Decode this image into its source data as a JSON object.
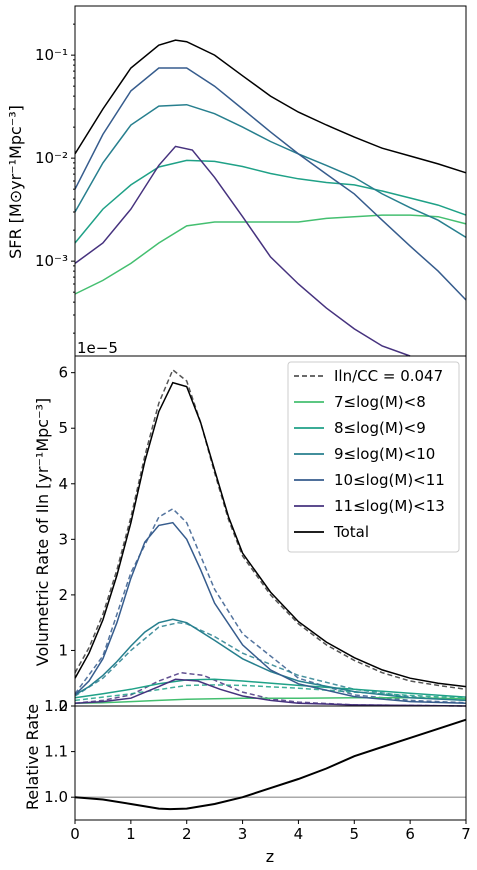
{
  "chart_data": [
    {
      "type": "line",
      "ylabel": "SFR [M⊙yr⁻¹Mpc⁻³]",
      "xlim": [
        0,
        7
      ],
      "ylim": [
        0.00012,
        0.3
      ],
      "yscale": "log",
      "ytick_labels": [
        "10⁻³",
        "10⁻²",
        "10⁻¹"
      ],
      "ytick_values": [
        0.001,
        0.01,
        0.1
      ],
      "series": [
        {
          "name": "7≤log(M)<8",
          "color": "#44bf70",
          "x": [
            0,
            0.5,
            1,
            1.5,
            2,
            2.5,
            3,
            3.5,
            4,
            4.5,
            5,
            5.5,
            6,
            6.5,
            7
          ],
          "y": [
            0.00048,
            0.00065,
            0.00095,
            0.0015,
            0.0022,
            0.0024,
            0.0024,
            0.0024,
            0.0024,
            0.0026,
            0.0027,
            0.0028,
            0.0028,
            0.0027,
            0.0023
          ]
        },
        {
          "name": "8≤log(M)<9",
          "color": "#1fa187",
          "x": [
            0,
            0.5,
            1,
            1.5,
            2,
            2.5,
            3,
            3.5,
            4,
            4.5,
            5,
            5.5,
            6,
            6.5,
            7
          ],
          "y": [
            0.0015,
            0.0032,
            0.0055,
            0.0082,
            0.0095,
            0.0093,
            0.0083,
            0.0071,
            0.0063,
            0.0058,
            0.0055,
            0.0048,
            0.0041,
            0.0035,
            0.0028
          ]
        },
        {
          "name": "9≤log(M)<10",
          "color": "#277f8e",
          "x": [
            0,
            0.5,
            1,
            1.5,
            2,
            2.5,
            3,
            3.5,
            4,
            4.5,
            5,
            5.5,
            6,
            6.5,
            7
          ],
          "y": [
            0.003,
            0.009,
            0.021,
            0.032,
            0.033,
            0.027,
            0.02,
            0.0145,
            0.011,
            0.0085,
            0.0065,
            0.0045,
            0.0033,
            0.0025,
            0.0017
          ]
        },
        {
          "name": "10≤log(M)<11",
          "color": "#365c8d",
          "x": [
            0,
            0.5,
            1,
            1.5,
            2,
            2.5,
            3,
            3.5,
            4,
            4.5,
            5,
            5.5,
            6,
            6.5,
            7
          ],
          "y": [
            0.005,
            0.017,
            0.045,
            0.075,
            0.075,
            0.05,
            0.03,
            0.018,
            0.011,
            0.007,
            0.0045,
            0.0025,
            0.0014,
            0.0008,
            0.00042
          ]
        },
        {
          "name": "11≤log(M)<13",
          "color": "#46327e",
          "x": [
            0,
            0.5,
            1,
            1.5,
            1.8,
            2.1,
            2.5,
            3,
            3.5,
            4,
            4.5,
            5,
            5.5,
            6
          ],
          "y": [
            0.00095,
            0.0015,
            0.0032,
            0.0085,
            0.013,
            0.012,
            0.0065,
            0.0027,
            0.0011,
            0.0006,
            0.00035,
            0.00022,
            0.00015,
            0.00011
          ]
        },
        {
          "name": "Total",
          "color": "#000000",
          "x": [
            0,
            0.5,
            1,
            1.5,
            1.8,
            2,
            2.5,
            3,
            3.5,
            4,
            4.5,
            5,
            5.5,
            6,
            6.5,
            7
          ],
          "y": [
            0.011,
            0.03,
            0.075,
            0.125,
            0.14,
            0.135,
            0.1,
            0.063,
            0.04,
            0.028,
            0.021,
            0.016,
            0.0125,
            0.0105,
            0.0088,
            0.0072
          ]
        }
      ]
    },
    {
      "type": "line",
      "ylabel": "Volumetric Rate of Iln [yr⁻¹Mpc⁻³]",
      "scale_label": "1e−5",
      "xlim": [
        0,
        7
      ],
      "ylim": [
        0,
        6.3
      ],
      "yticks": [
        0,
        1,
        2,
        3,
        4,
        5,
        6
      ],
      "legend_loc": "upper right",
      "series": [
        {
          "name": "Iln/CC = 0.047",
          "color": "#555555",
          "style": "dashed",
          "x": [
            0,
            0.25,
            0.5,
            0.75,
            1,
            1.25,
            1.5,
            1.75,
            2,
            2.25,
            2.5,
            2.75,
            3,
            3.5,
            4,
            4.5,
            5,
            5.5,
            6,
            6.5,
            7
          ],
          "y": [
            0.6,
            1.05,
            1.65,
            2.45,
            3.4,
            4.5,
            5.45,
            6.05,
            5.85,
            5.1,
            4.2,
            3.35,
            2.7,
            2.0,
            1.48,
            1.1,
            0.82,
            0.6,
            0.45,
            0.37,
            0.3
          ]
        },
        {
          "name": "7≤log(M)<8",
          "color": "#44bf70",
          "x": [
            0,
            0.5,
            1,
            1.5,
            2,
            2.5,
            3,
            4,
            5,
            6,
            7
          ],
          "y": [
            0.05,
            0.06,
            0.08,
            0.1,
            0.12,
            0.13,
            0.14,
            0.14,
            0.15,
            0.15,
            0.13
          ]
        },
        {
          "name": "8≤log(M)<9",
          "color": "#1fa187",
          "x": [
            0,
            0.5,
            1,
            1.5,
            2,
            2.5,
            3,
            4,
            5,
            6,
            7
          ],
          "y": [
            0.15,
            0.22,
            0.3,
            0.4,
            0.47,
            0.48,
            0.45,
            0.37,
            0.3,
            0.23,
            0.16
          ]
        },
        {
          "name": "9≤log(M)<10",
          "color": "#277f8e",
          "x": [
            0,
            0.25,
            0.5,
            0.75,
            1,
            1.25,
            1.5,
            1.75,
            2,
            2.5,
            3,
            3.5,
            4,
            5,
            6,
            7
          ],
          "y": [
            0.2,
            0.35,
            0.55,
            0.8,
            1.08,
            1.33,
            1.5,
            1.56,
            1.5,
            1.18,
            0.85,
            0.62,
            0.45,
            0.26,
            0.15,
            0.1
          ]
        },
        {
          "name": "10≤log(M)<11",
          "color": "#365c8d",
          "x": [
            0,
            0.25,
            0.5,
            0.75,
            1,
            1.25,
            1.5,
            1.75,
            2,
            2.25,
            2.5,
            3,
            3.5,
            4,
            5,
            6,
            7
          ],
          "y": [
            0.2,
            0.45,
            0.85,
            1.5,
            2.3,
            2.95,
            3.25,
            3.3,
            3.0,
            2.45,
            1.85,
            1.1,
            0.65,
            0.4,
            0.17,
            0.08,
            0.05
          ]
        },
        {
          "name": "11≤log(M)<13",
          "color": "#46327e",
          "x": [
            0,
            0.5,
            1,
            1.5,
            1.8,
            2.2,
            2.6,
            3,
            3.5,
            4,
            5,
            6,
            7
          ],
          "y": [
            0.05,
            0.08,
            0.14,
            0.35,
            0.48,
            0.45,
            0.3,
            0.18,
            0.1,
            0.05,
            0.02,
            0.01,
            0.0
          ]
        },
        {
          "name": "Total",
          "color": "#000000",
          "x": [
            0,
            0.25,
            0.5,
            0.75,
            1,
            1.25,
            1.5,
            1.75,
            2,
            2.25,
            2.5,
            2.75,
            3,
            3.5,
            4,
            4.5,
            5,
            5.5,
            6,
            6.5,
            7
          ],
          "y": [
            0.5,
            0.95,
            1.55,
            2.35,
            3.3,
            4.4,
            5.3,
            5.82,
            5.75,
            5.1,
            4.25,
            3.4,
            2.75,
            2.05,
            1.52,
            1.15,
            0.87,
            0.65,
            0.5,
            0.41,
            0.35
          ]
        }
      ],
      "dashed_series": [
        {
          "color": "#365c8d",
          "x": [
            0,
            0.5,
            1,
            1.5,
            1.75,
            2,
            2.5,
            3,
            4,
            5,
            6,
            7
          ],
          "y": [
            0.22,
            0.9,
            2.4,
            3.4,
            3.55,
            3.3,
            2.1,
            1.3,
            0.5,
            0.2,
            0.1,
            0.06
          ]
        },
        {
          "color": "#277f8e",
          "x": [
            0,
            0.5,
            1,
            1.5,
            1.85,
            2,
            2.5,
            3,
            4,
            5,
            6,
            7
          ],
          "y": [
            0.18,
            0.5,
            1.0,
            1.42,
            1.5,
            1.48,
            1.25,
            0.95,
            0.55,
            0.3,
            0.17,
            0.1
          ]
        },
        {
          "color": "#46327e",
          "x": [
            0,
            0.5,
            1,
            1.5,
            1.9,
            2.3,
            3,
            3.5,
            4,
            5,
            6,
            7
          ],
          "y": [
            0.05,
            0.1,
            0.2,
            0.45,
            0.6,
            0.55,
            0.25,
            0.13,
            0.07,
            0.02,
            0.01,
            0.0
          ]
        },
        {
          "color": "#1fa187",
          "x": [
            0,
            1,
            2,
            2.5,
            3,
            4,
            5,
            6,
            7
          ],
          "y": [
            0.1,
            0.22,
            0.37,
            0.38,
            0.37,
            0.32,
            0.25,
            0.19,
            0.14
          ]
        }
      ]
    },
    {
      "type": "line",
      "ylabel": "Relative Rate",
      "xlabel": "z",
      "xlim": [
        0,
        7
      ],
      "ylim": [
        0.95,
        1.2
      ],
      "yticks": [
        1.0,
        1.1,
        1.2
      ],
      "xticks": [
        0,
        1,
        2,
        3,
        4,
        5,
        6,
        7
      ],
      "reference_line": {
        "y": 1.0,
        "color": "#aaaaaa"
      },
      "series": [
        {
          "name": "Total",
          "color": "#000000",
          "x": [
            0,
            0.5,
            1,
            1.5,
            1.7,
            2,
            2.5,
            3,
            3.5,
            4,
            4.5,
            5,
            5.5,
            6,
            6.5,
            7
          ],
          "y": [
            1.0,
            0.995,
            0.985,
            0.975,
            0.974,
            0.975,
            0.985,
            1.0,
            1.02,
            1.04,
            1.063,
            1.09,
            1.11,
            1.13,
            1.15,
            1.17
          ]
        }
      ]
    }
  ]
}
